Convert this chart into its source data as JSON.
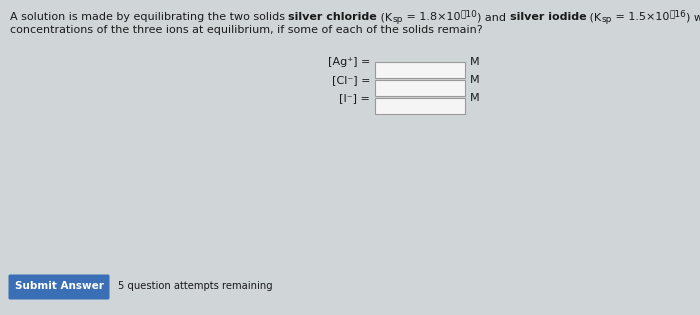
{
  "background_color": "#d0d5d8",
  "text_color": "#1a1a1a",
  "ion_labels": [
    "[Ag⁺] =",
    "[Cl⁻] =",
    "[I⁻] ="
  ],
  "unit": "M",
  "button_text": "Submit Answer",
  "button_color": "#3a6eb5",
  "button_text_color": "#ffffff",
  "attempts_text": "5 question attempts remaining",
  "input_box_color": "#f5f5f5",
  "input_box_border": "#999999",
  "fontsize_main": 8.0,
  "fontsize_small": 6.5,
  "fontsize_btn": 7.5,
  "fontsize_attempts": 7.2
}
